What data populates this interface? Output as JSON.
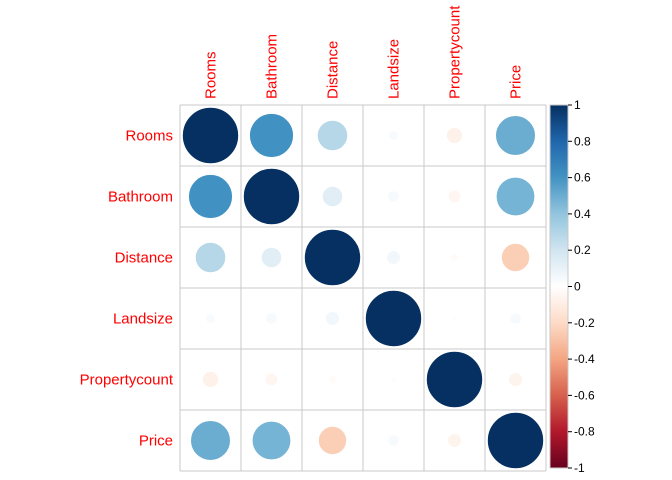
{
  "chart_data": {
    "type": "heatmap",
    "style": "corrplot-circle",
    "variables": [
      "Rooms",
      "Bathroom",
      "Distance",
      "Landsize",
      "Propertycount",
      "Price"
    ],
    "matrix": [
      [
        1.0,
        0.61,
        0.29,
        0.03,
        -0.08,
        0.5
      ],
      [
        0.61,
        1.0,
        0.13,
        0.04,
        -0.05,
        0.47
      ],
      [
        0.29,
        0.13,
        1.0,
        0.06,
        -0.02,
        -0.25
      ],
      [
        0.03,
        0.04,
        0.06,
        1.0,
        -0.01,
        0.04
      ],
      [
        -0.08,
        -0.05,
        -0.02,
        -0.01,
        1.0,
        -0.06
      ],
      [
        0.5,
        0.47,
        -0.25,
        0.04,
        -0.06,
        1.0
      ]
    ],
    "colorbar": {
      "range": [
        -1,
        1
      ],
      "ticks": [
        "1",
        "0.8",
        "0.6",
        "0.4",
        "0.2",
        "0",
        "-0.2",
        "-0.4",
        "-0.6",
        "-0.8",
        "-1"
      ],
      "colors": [
        "#67001F",
        "#B2182B",
        "#D6604D",
        "#F4A582",
        "#FDDBC7",
        "#FFFFFF",
        "#D1E5F0",
        "#92C5DE",
        "#4393C3",
        "#2166AC",
        "#053061"
      ]
    },
    "label_color": "#FF0000",
    "grid": true,
    "legend": "right"
  }
}
